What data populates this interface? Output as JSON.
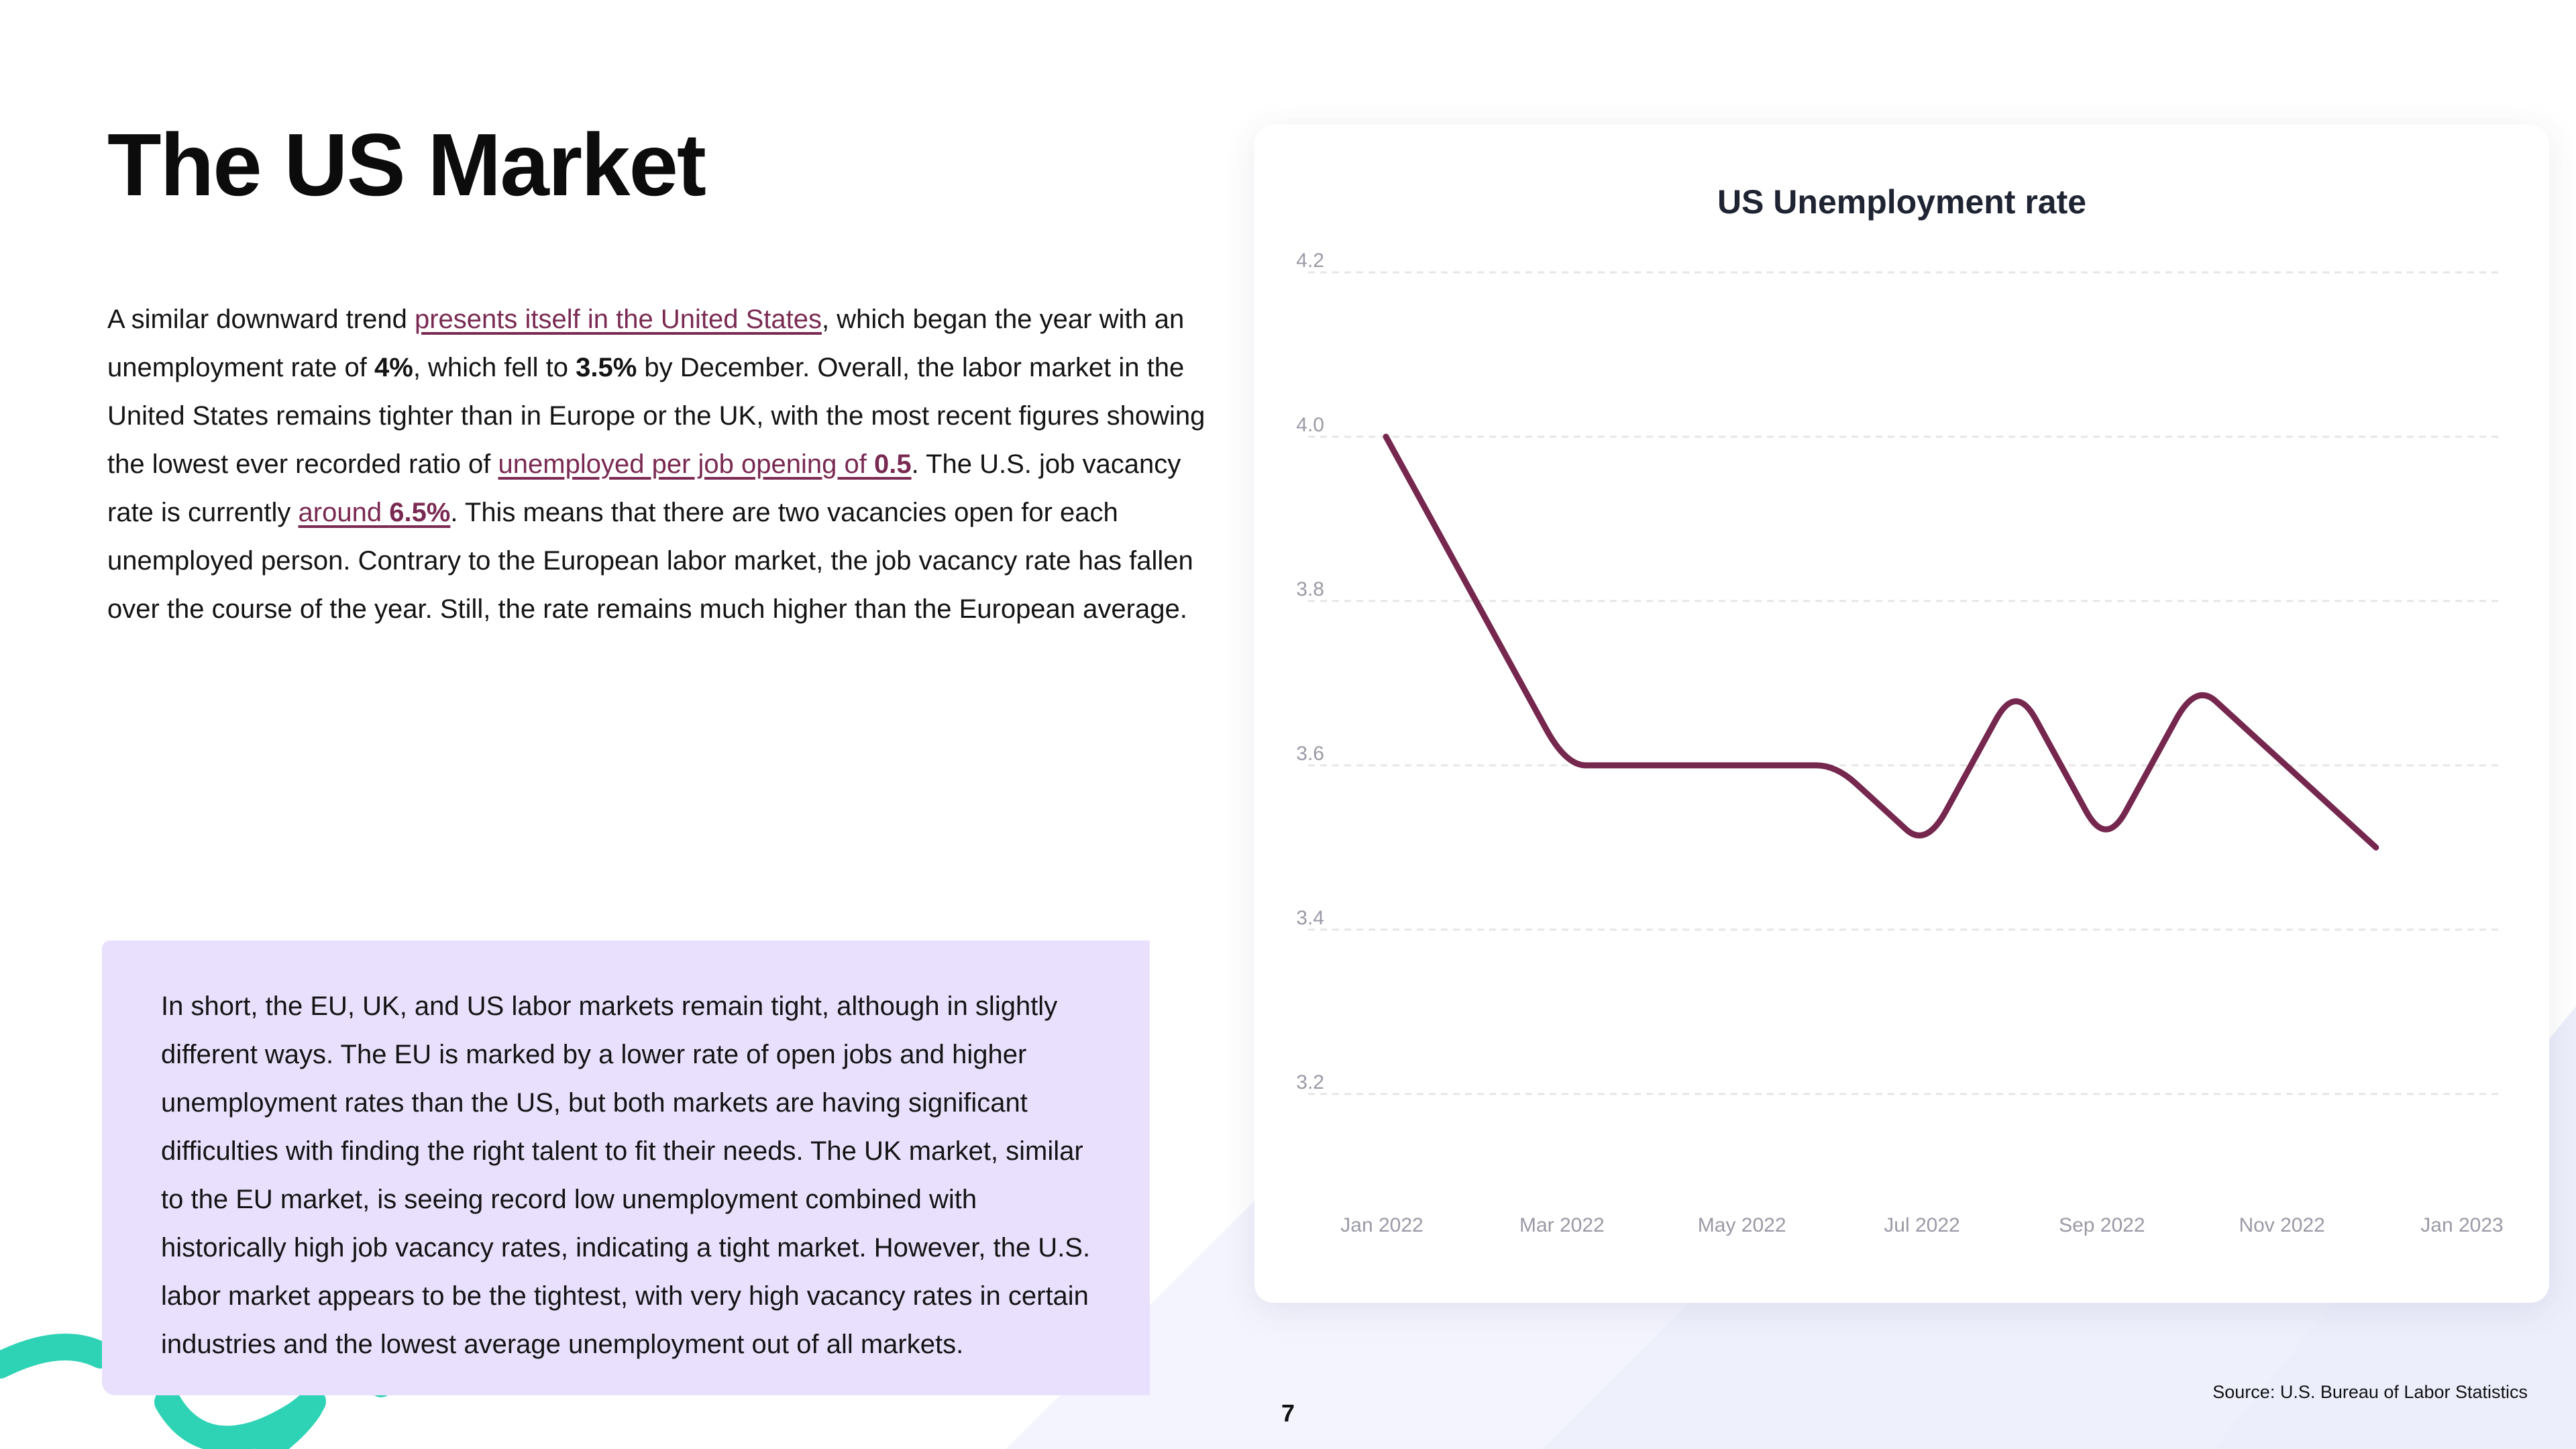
{
  "page": {
    "title": "The US Market",
    "page_number": "7",
    "source": "Source: U.S. Bureau of Labor Statistics"
  },
  "intro": {
    "t1": "A similar downward trend ",
    "link1": "presents itself in the United States",
    "t2": ", which began the year with an unemployment rate of ",
    "b1": "4%",
    "t3": ", which fell to ",
    "b2": "3.5%",
    "t4": " by December. Overall, the labor market in the United States remains tighter than in Europe or the UK, with the most recent figures showing the lowest ever recorded ratio of ",
    "link2": "unemployed per job opening of ",
    "link2_bold": "0.5",
    "t5": ". The U.S. job vacancy rate is currently ",
    "link3": "around ",
    "link3_bold": "6.5%",
    "t6": ". This means that there are two vacancies open for each unemployed person. Contrary to the European labor market, the job vacancy rate has fallen over the course of the year. Still, the rate remains much higher than the European average."
  },
  "summary": {
    "text": "In short, the EU, UK, and US labor markets remain tight, although in slightly different ways. The EU is marked by a lower rate of open jobs and higher unemployment rates than the US, but both markets are having significant difficulties with finding the right talent to fit their needs. The UK market, similar to the EU market, is seeing record low unemployment combined with historically high job vacancy rates, indicating a tight market. However, the U.S. labor market appears to be the tightest, with very high vacancy rates in certain industries and the lowest average unemployment out of all markets."
  },
  "colors": {
    "line": "#75274e",
    "grid": "#e6e6e6",
    "tick": "#9a9aa6",
    "summary_bg": "#e9e0fd",
    "accent_teal": "#2ed3b5",
    "link": "#7a2a52"
  },
  "chart_data": {
    "type": "line",
    "title": "US Unemployment rate",
    "xlabel": "",
    "ylabel": "",
    "x": [
      "2022-01",
      "2022-02",
      "2022-03",
      "2022-04",
      "2022-05",
      "2022-06",
      "2022-07",
      "2022-08",
      "2022-09",
      "2022-10",
      "2022-11",
      "2022-12",
      "2023-01"
    ],
    "series": [
      {
        "values": [
          4.0,
          3.8,
          3.6,
          3.6,
          3.6,
          3.6,
          3.5,
          3.7,
          3.5,
          3.7,
          3.6,
          3.5,
          null
        ]
      }
    ],
    "x_tick_labels": [
      "Jan 2022",
      "Mar 2022",
      "May 2022",
      "Jul 2022",
      "Sep 2022",
      "Nov 2022",
      "Jan 2023"
    ],
    "y_ticks": [
      3.2,
      3.4,
      3.6,
      3.8,
      4.0,
      4.2
    ],
    "ylim": [
      3.15,
      4.2
    ],
    "grid": true,
    "grid_style": "dashed horizontal",
    "legend": "none"
  }
}
